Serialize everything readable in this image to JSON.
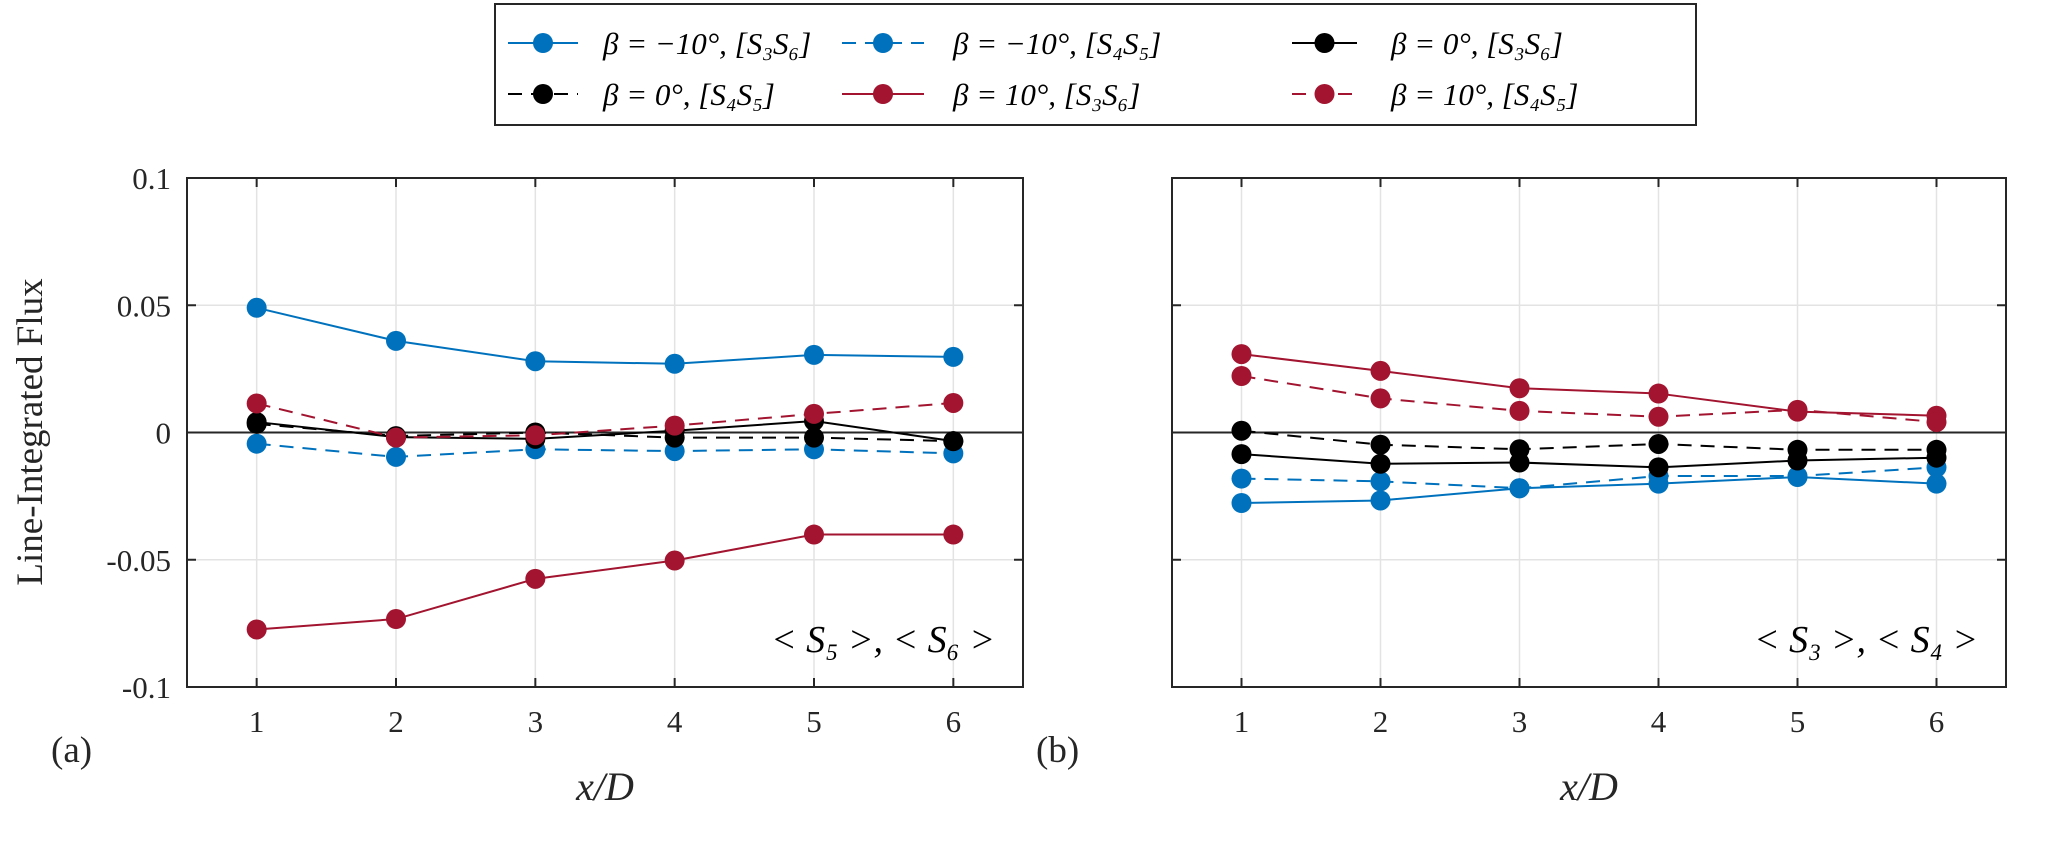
{
  "chart_data": [
    {
      "type": "line",
      "panel_label": "(a)",
      "annotation": "< S₅ >, < S₆ >",
      "xlabel": "x/D",
      "ylabel": "Line-Integrated Flux",
      "x": [
        1,
        2,
        3,
        4,
        5,
        6
      ],
      "xlim": [
        0.5,
        6.5
      ],
      "ylim": [
        -0.1,
        0.1
      ],
      "xticks": [
        "1",
        "2",
        "3",
        "4",
        "5",
        "6"
      ],
      "yticks": [
        "-0.1",
        "-0.05",
        "0",
        "0.05",
        "0.1"
      ],
      "grid": true,
      "series": [
        {
          "name": "β = −10°, [S₃S₆]",
          "values": [
            0.049,
            0.036,
            0.028,
            0.027,
            0.0305,
            0.0297
          ]
        },
        {
          "name": "β = −10°, [S₄S₅]",
          "values": [
            -0.0044,
            -0.0096,
            -0.0066,
            -0.0073,
            -0.0066,
            -0.0082
          ]
        },
        {
          "name": "β = 0°, [S₃S₆]",
          "values": [
            0.0041,
            -0.0018,
            -0.0025,
            0.0007,
            0.0045,
            -0.0034
          ]
        },
        {
          "name": "β = 0°, [S₄S₅]",
          "values": [
            0.0034,
            -0.0014,
            0.0,
            -0.002,
            -0.002,
            -0.0034
          ]
        },
        {
          "name": "β = 10°, [S₃S₆]",
          "values": [
            -0.0774,
            -0.0733,
            -0.0575,
            -0.0503,
            -0.0401,
            -0.0401
          ]
        },
        {
          "name": "β = 10°, [S₄S₅]",
          "values": [
            0.0114,
            -0.002,
            -0.0011,
            0.0027,
            0.0073,
            0.0116
          ]
        }
      ]
    },
    {
      "type": "line",
      "panel_label": "(b)",
      "annotation": "< S₃ >, < S₄ >",
      "xlabel": "x/D",
      "x": [
        1,
        2,
        3,
        4,
        5,
        6
      ],
      "xlim": [
        0.5,
        6.5
      ],
      "ylim": [
        -0.1,
        0.1
      ],
      "xticks": [
        "1",
        "2",
        "3",
        "4",
        "5",
        "6"
      ],
      "grid": true,
      "series": [
        {
          "name": "β = −10°, [S₃S₆]",
          "values": [
            -0.0277,
            -0.0267,
            -0.0219,
            -0.0201,
            -0.0175,
            -0.0201
          ]
        },
        {
          "name": "β = −10°, [S₄S₅]",
          "values": [
            -0.0181,
            -0.0192,
            -0.0219,
            -0.0171,
            -0.0171,
            -0.0137
          ]
        },
        {
          "name": "β = 0°, [S₃S₆]",
          "values": [
            -0.0085,
            -0.0123,
            -0.0118,
            -0.0137,
            -0.011,
            -0.0099
          ]
        },
        {
          "name": "β = 0°, [S₄S₅]",
          "values": [
            0.0007,
            -0.0048,
            -0.0066,
            -0.0045,
            -0.0068,
            -0.0068
          ]
        },
        {
          "name": "β = 10°, [S₃S₆]",
          "values": [
            0.0308,
            0.0242,
            0.0174,
            0.0153,
            0.0082,
            0.0066
          ]
        },
        {
          "name": "β = 10°, [S₄S₅]",
          "values": [
            0.0222,
            0.0134,
            0.0085,
            0.0062,
            0.0089,
            0.0041
          ]
        }
      ]
    }
  ],
  "legend": {
    "placement": "top-center",
    "entries": [
      {
        "label": "β = −10°, [S₃S₆]",
        "color": "#0072BD",
        "style": "solid"
      },
      {
        "label": "β = −10°, [S₄S₅]",
        "color": "#0072BD",
        "style": "dashed"
      },
      {
        "label": "β = 0°, [S₃S₆]",
        "color": "#000000",
        "style": "solid"
      },
      {
        "label": "β = 0°, [S₄S₅]",
        "color": "#000000",
        "style": "dashed"
      },
      {
        "label": "β = 10°, [S₃S₆]",
        "color": "#A2142F",
        "style": "solid"
      },
      {
        "label": "β = 10°, [S₄S₅]",
        "color": "#A2142F",
        "style": "dashed"
      }
    ]
  }
}
